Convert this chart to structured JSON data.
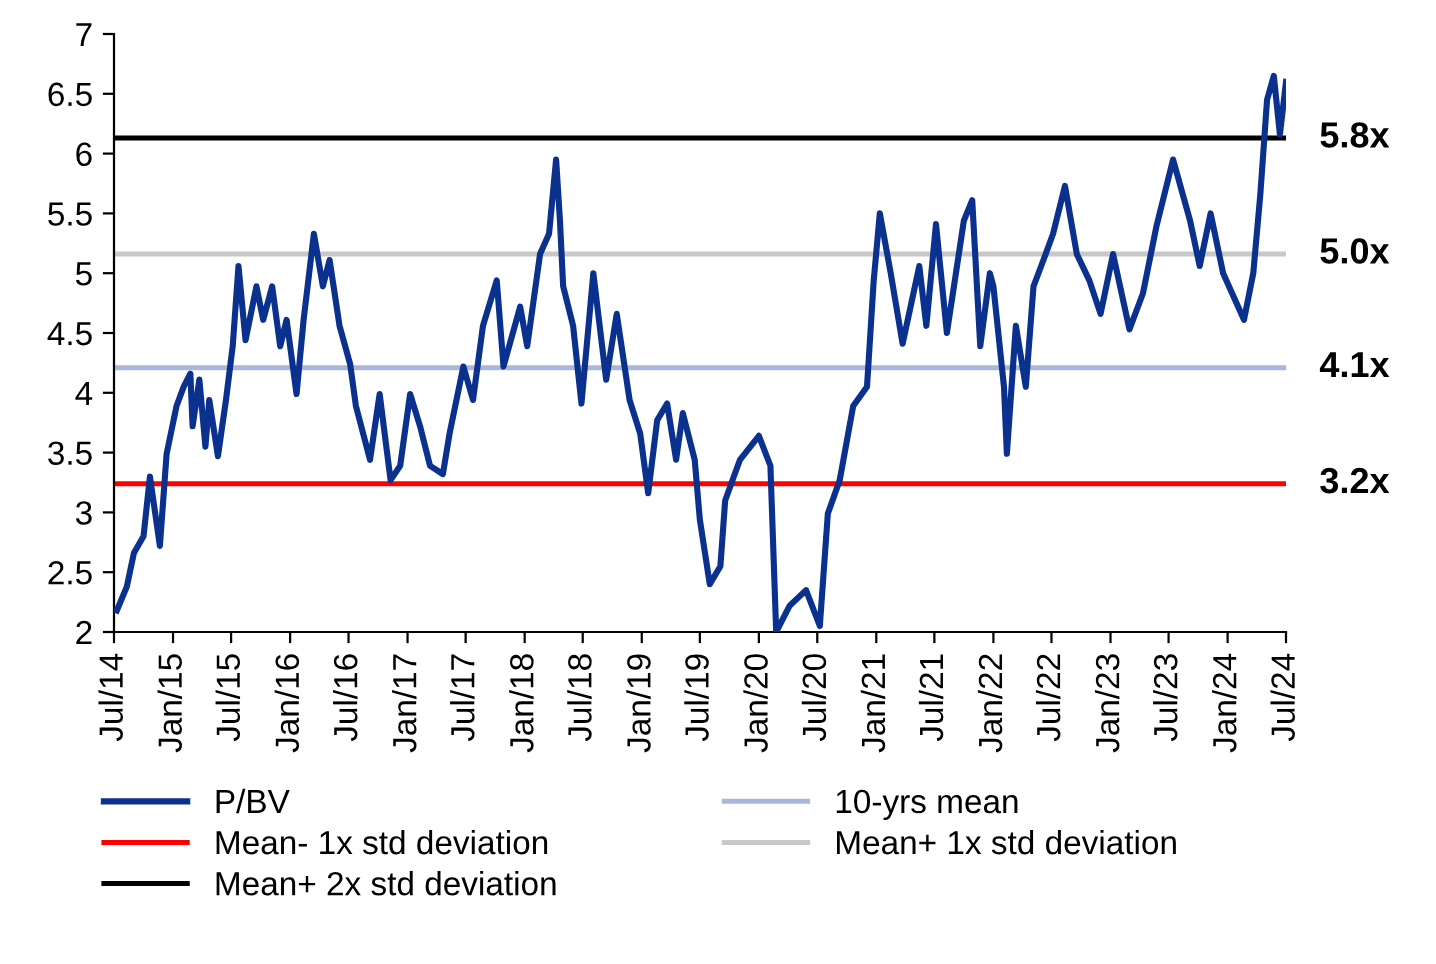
{
  "chart_data": {
    "type": "line",
    "ylim": [
      2,
      7
    ],
    "yticks": [
      2,
      2.5,
      3,
      3.5,
      4,
      4.5,
      5,
      5.5,
      6,
      6.5,
      7
    ],
    "xlim": [
      "2014-07",
      "2024-07"
    ],
    "xticks": [
      {
        "value": "2014-07",
        "label": "Jul/14"
      },
      {
        "value": "2015-01",
        "label": "Jan/15"
      },
      {
        "value": "2015-07",
        "label": "Jul/15"
      },
      {
        "value": "2016-01",
        "label": "Jan/16"
      },
      {
        "value": "2016-07",
        "label": "Jul/16"
      },
      {
        "value": "2017-01",
        "label": "Jan/17"
      },
      {
        "value": "2017-07",
        "label": "Jul/17"
      },
      {
        "value": "2018-01",
        "label": "Jan/18"
      },
      {
        "value": "2018-07",
        "label": "Jul/18"
      },
      {
        "value": "2019-01",
        "label": "Jan/19"
      },
      {
        "value": "2019-07",
        "label": "Jul/19"
      },
      {
        "value": "2020-01",
        "label": "Jan/20"
      },
      {
        "value": "2020-07",
        "label": "Jul/20"
      },
      {
        "value": "2021-01",
        "label": "Jan/21"
      },
      {
        "value": "2021-07",
        "label": "Jul/21"
      },
      {
        "value": "2022-01",
        "label": "Jan/22"
      },
      {
        "value": "2022-07",
        "label": "Jul/22"
      },
      {
        "value": "2023-01",
        "label": "Jan/23"
      },
      {
        "value": "2023-07",
        "label": "Jul/23"
      },
      {
        "value": "2024-01",
        "label": "Jan/24"
      },
      {
        "value": "2024-07",
        "label": "Jul/24"
      }
    ],
    "grid": false,
    "legend": "bottom",
    "marker": "none",
    "line_style": "solid",
    "series": [
      {
        "name": "P/BV",
        "color": "#0b318f",
        "x": [
          "2014-07-10",
          "2014-08-10",
          "2014-09-01",
          "2014-10-01",
          "2014-10-21",
          "2014-11-21",
          "2014-12-12",
          "2015-01-12",
          "2015-02-03",
          "2015-02-24",
          "2015-03-03",
          "2015-03-24",
          "2015-04-12",
          "2015-04-24",
          "2015-05-21",
          "2015-06-15",
          "2015-07-06",
          "2015-07-24",
          "2015-08-15",
          "2015-09-18",
          "2015-10-09",
          "2015-11-06",
          "2015-12-01",
          "2015-12-21",
          "2016-01-21",
          "2016-02-12",
          "2016-03-15",
          "2016-04-12",
          "2016-05-03",
          "2016-06-03",
          "2016-07-06",
          "2016-07-24",
          "2016-09-06",
          "2016-10-06",
          "2016-11-09",
          "2016-12-09",
          "2017-01-09",
          "2017-02-09",
          "2017-03-12",
          "2017-04-21",
          "2017-05-12",
          "2017-06-24",
          "2017-07-24",
          "2017-08-24",
          "2017-10-06",
          "2017-10-27",
          "2017-12-18",
          "2018-01-09",
          "2018-02-18",
          "2018-03-18",
          "2018-04-09",
          "2018-04-21",
          "2018-05-01",
          "2018-06-01",
          "2018-06-27",
          "2018-08-03",
          "2018-09-12",
          "2018-10-15",
          "2018-11-24",
          "2018-12-27",
          "2019-01-21",
          "2019-02-18",
          "2019-03-21",
          "2019-04-18",
          "2019-05-09",
          "2019-06-15",
          "2019-07-01",
          "2019-08-01",
          "2019-09-03",
          "2019-09-18",
          "2019-11-03",
          "2020-01-01",
          "2020-02-06",
          "2020-02-24",
          "2020-04-06",
          "2020-05-27",
          "2020-07-09",
          "2020-08-03",
          "2020-09-09",
          "2020-10-21",
          "2020-12-03",
          "2020-12-24",
          "2021-01-12",
          "2021-02-15",
          "2021-03-24",
          "2021-05-15",
          "2021-06-06",
          "2021-07-06",
          "2021-08-09",
          "2021-10-01",
          "2021-10-27",
          "2021-11-21",
          "2021-12-21",
          "2022-01-01",
          "2022-02-03",
          "2022-02-12",
          "2022-03-12",
          "2022-04-12",
          "2022-05-06",
          "2022-06-06",
          "2022-07-06",
          "2022-08-12",
          "2022-09-18",
          "2022-10-27",
          "2022-12-01",
          "2023-01-09",
          "2023-03-01",
          "2023-04-12",
          "2023-05-24",
          "2023-07-15",
          "2023-09-06",
          "2023-10-06",
          "2023-11-09",
          "2023-12-18",
          "2024-02-21",
          "2024-03-21",
          "2024-04-12",
          "2024-05-03",
          "2024-05-24",
          "2024-06-12",
          "2024-07-01"
        ],
        "values": [
          2.18,
          2.38,
          2.66,
          2.8,
          3.3,
          2.72,
          3.49,
          3.89,
          4.05,
          4.16,
          3.72,
          4.11,
          3.55,
          3.94,
          3.47,
          3.94,
          4.39,
          5.06,
          4.44,
          4.89,
          4.61,
          4.89,
          4.39,
          4.61,
          3.99,
          4.61,
          5.33,
          4.89,
          5.11,
          4.56,
          4.24,
          3.89,
          3.44,
          3.99,
          3.27,
          3.39,
          3.99,
          3.72,
          3.39,
          3.32,
          3.66,
          4.22,
          3.94,
          4.56,
          4.94,
          4.22,
          4.72,
          4.39,
          5.16,
          5.33,
          5.95,
          5.44,
          4.89,
          4.56,
          3.91,
          5.0,
          4.11,
          4.66,
          3.94,
          3.66,
          3.16,
          3.77,
          3.91,
          3.44,
          3.83,
          3.44,
          2.94,
          2.4,
          2.55,
          3.1,
          3.44,
          3.64,
          3.39,
          2.0,
          2.22,
          2.35,
          2.05,
          2.99,
          3.27,
          3.89,
          4.05,
          4.94,
          5.5,
          5.0,
          4.41,
          5.06,
          4.56,
          5.41,
          4.5,
          5.44,
          5.61,
          4.39,
          5.0,
          4.89,
          4.05,
          3.49,
          4.56,
          4.05,
          4.89,
          5.11,
          5.33,
          5.73,
          5.16,
          4.94,
          4.66,
          5.16,
          4.53,
          4.83,
          5.39,
          5.95,
          5.44,
          5.06,
          5.5,
          5.0,
          4.61,
          5.0,
          5.66,
          6.45,
          6.65,
          6.16,
          6.6
        ]
      },
      {
        "name": "10-yrs mean",
        "color": "#a9b8da",
        "x": [
          "2014-07",
          "2024-07"
        ],
        "values": [
          4.21,
          4.21
        ]
      },
      {
        "name": "Mean- 1x std deviation",
        "color": "#ff0000",
        "x": [
          "2014-07",
          "2024-07"
        ],
        "values": [
          3.24,
          3.24
        ]
      },
      {
        "name": "Mean+ 1x std deviation",
        "color": "#c8c8c8",
        "x": [
          "2014-07",
          "2024-07"
        ],
        "values": [
          5.16,
          5.16
        ]
      },
      {
        "name": "Mean+ 2x std deviation",
        "color": "#000000",
        "x": [
          "2014-07",
          "2024-07"
        ],
        "values": [
          6.13,
          6.13
        ]
      }
    ],
    "annotations": [
      {
        "text": "5.8x",
        "x": "2024-07",
        "y": 6.13
      },
      {
        "text": "5.0x",
        "x": "2024-07",
        "y": 5.16
      },
      {
        "text": "4.1x",
        "x": "2024-07",
        "y": 4.21
      },
      {
        "text": "3.2x",
        "x": "2024-07",
        "y": 3.24
      }
    ]
  }
}
